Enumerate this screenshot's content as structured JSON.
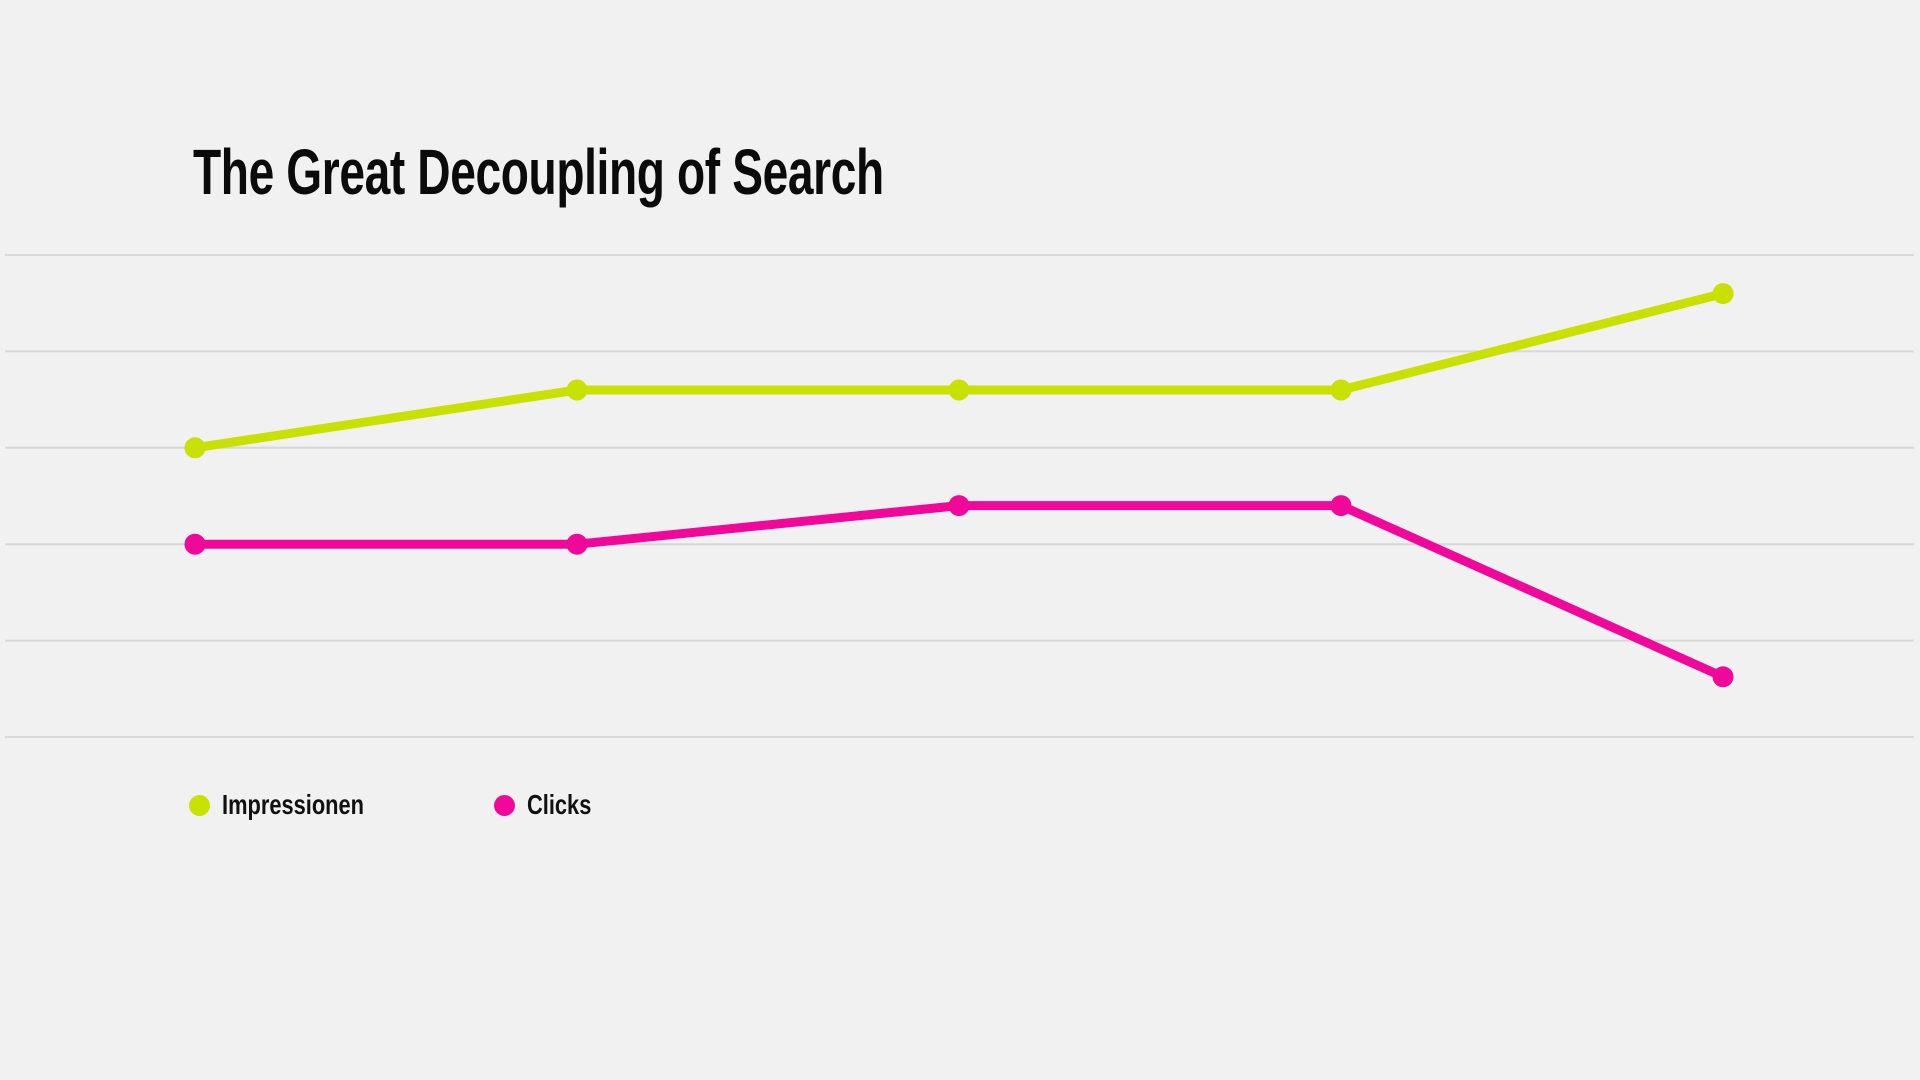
{
  "canvas": {
    "background_color": "#f1f1f1"
  },
  "chart_data": {
    "type": "line",
    "title": "The Great Decoupling of Search",
    "title_color": "#0b0b0b",
    "x": [
      1,
      2,
      3,
      4,
      5
    ],
    "x_tick_labels": [],
    "y_tick_labels": [],
    "xlabel": "",
    "ylabel": "",
    "ylim": [
      0,
      100
    ],
    "series": [
      {
        "name": "Impressionen",
        "color": "#c8e100",
        "values": [
          60,
          72,
          72,
          72,
          92
        ]
      },
      {
        "name": "Clicks",
        "color": "#f0089b",
        "values": [
          40,
          40,
          48,
          48,
          12.5
        ]
      }
    ],
    "grid": {
      "horizontal": true,
      "vertical": false,
      "line_count": 6,
      "color": "#d8d8d8"
    },
    "legend_position": "bottom-left",
    "legend_text_color": "#111111",
    "marker": "circle"
  }
}
